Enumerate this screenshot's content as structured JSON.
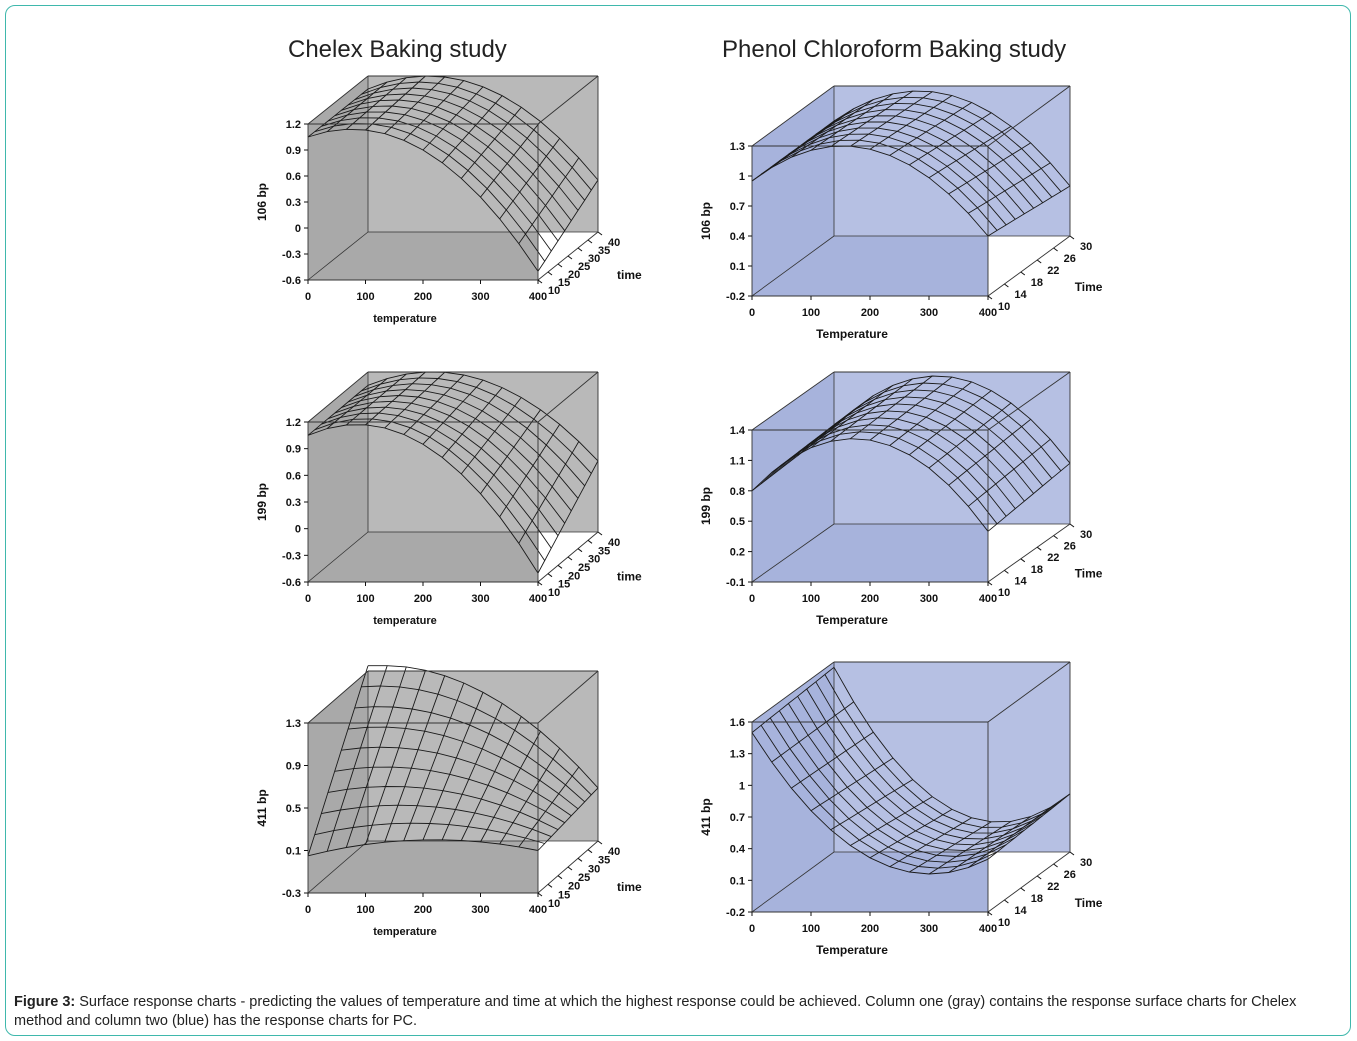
{
  "column_titles": {
    "left": "Chelex Baking study",
    "right": "Phenol Chloroform Baking study"
  },
  "colors": {
    "gray_box": "#a9a9a9",
    "gray_back": "#b9b9b9",
    "blue_box": "#a7b3dc",
    "blue_back": "#b6c0e3",
    "frame_border": "#3fb8ac"
  },
  "chart_data": [
    {
      "type": "surface3d",
      "method": "Chelex",
      "color": "gray",
      "zlabel": "106 bp",
      "xlabel": "temperature",
      "ylabel": "time",
      "x_ticks": [
        "0",
        "100",
        "200",
        "300",
        "400"
      ],
      "y_ticks": [
        "10",
        "15",
        "20",
        "25",
        "30",
        "35",
        "40"
      ],
      "z_ticks": [
        "1.2",
        "0.9",
        "0.6",
        "0.3",
        "0",
        "-0.3",
        "-0.6"
      ],
      "xlim": [
        0,
        400
      ],
      "ylim": [
        10,
        40
      ],
      "zlim": [
        -0.6,
        1.2
      ],
      "surface_points": [
        {
          "x": 0,
          "y": 10,
          "z": 1.05
        },
        {
          "x": 200,
          "y": 10,
          "z": 0.9
        },
        {
          "x": 400,
          "y": 10,
          "z": -0.5
        },
        {
          "x": 0,
          "y": 40,
          "z": 1.05
        },
        {
          "x": 100,
          "y": 40,
          "z": 1.2
        },
        {
          "x": 400,
          "y": 40,
          "z": 0.0
        }
      ]
    },
    {
      "type": "surface3d",
      "method": "Chelex",
      "color": "gray",
      "zlabel": "199 bp",
      "xlabel": "temperature",
      "ylabel": "time",
      "x_ticks": [
        "0",
        "100",
        "200",
        "300",
        "400"
      ],
      "y_ticks": [
        "10",
        "15",
        "20",
        "25",
        "30",
        "35",
        "40"
      ],
      "z_ticks": [
        "1.2",
        "0.9",
        "0.6",
        "0.3",
        "0",
        "-0.3",
        "-0.6"
      ],
      "xlim": [
        0,
        400
      ],
      "ylim": [
        10,
        40
      ],
      "zlim": [
        -0.6,
        1.2
      ],
      "surface_points": [
        {
          "x": 0,
          "y": 10,
          "z": 1.05
        },
        {
          "x": 200,
          "y": 10,
          "z": 0.95
        },
        {
          "x": 400,
          "y": 10,
          "z": -0.5
        },
        {
          "x": 0,
          "y": 40,
          "z": 1.05
        },
        {
          "x": 100,
          "y": 40,
          "z": 1.2
        },
        {
          "x": 400,
          "y": 40,
          "z": 0.2
        }
      ]
    },
    {
      "type": "surface3d",
      "method": "Chelex",
      "color": "gray",
      "zlabel": "411 bp",
      "xlabel": "temperature",
      "ylabel": "time",
      "x_ticks": [
        "0",
        "100",
        "200",
        "300",
        "400"
      ],
      "y_ticks": [
        "10",
        "15",
        "20",
        "25",
        "30",
        "35",
        "40"
      ],
      "z_ticks": [
        "1.3",
        "0.9",
        "0.5",
        "0.1",
        "-0.3"
      ],
      "xlim": [
        0,
        400
      ],
      "ylim": [
        10,
        40
      ],
      "zlim": [
        -0.3,
        1.3
      ],
      "surface_points": [
        {
          "x": 0,
          "y": 10,
          "z": 0.05
        },
        {
          "x": 200,
          "y": 10,
          "z": 0.2
        },
        {
          "x": 400,
          "y": 10,
          "z": 0.1
        },
        {
          "x": 0,
          "y": 40,
          "z": 1.35
        },
        {
          "x": 200,
          "y": 40,
          "z": 1.1
        },
        {
          "x": 400,
          "y": 40,
          "z": 0.2
        }
      ]
    },
    {
      "type": "surface3d",
      "method": "Phenol Chloroform",
      "color": "blue",
      "zlabel": "106 bp",
      "xlabel": "Temperature",
      "ylabel": "Time",
      "x_ticks": [
        "0",
        "100",
        "200",
        "300",
        "400"
      ],
      "y_ticks": [
        "10",
        "14",
        "18",
        "22",
        "26",
        "30"
      ],
      "z_ticks": [
        "1.3",
        "1",
        "0.7",
        "0.4",
        "0.1",
        "-0.2"
      ],
      "xlim": [
        0,
        400
      ],
      "ylim": [
        10,
        30
      ],
      "zlim": [
        -0.2,
        1.3
      ],
      "surface_points": [
        {
          "x": 0,
          "y": 10,
          "z": 0.95
        },
        {
          "x": 150,
          "y": 10,
          "z": 1.3
        },
        {
          "x": 400,
          "y": 10,
          "z": 0.4
        },
        {
          "x": 0,
          "y": 30,
          "z": 0.95
        },
        {
          "x": 150,
          "y": 30,
          "z": 1.25
        },
        {
          "x": 400,
          "y": 30,
          "z": 0.3
        }
      ]
    },
    {
      "type": "surface3d",
      "method": "Phenol Chloroform",
      "color": "blue",
      "zlabel": "199 bp",
      "xlabel": "Temperature",
      "ylabel": "Time",
      "x_ticks": [
        "0",
        "100",
        "200",
        "300",
        "400"
      ],
      "y_ticks": [
        "10",
        "14",
        "18",
        "22",
        "26",
        "30"
      ],
      "z_ticks": [
        "1.4",
        "1.1",
        "0.8",
        "0.5",
        "0.2",
        "-0.1"
      ],
      "xlim": [
        0,
        400
      ],
      "ylim": [
        10,
        30
      ],
      "zlim": [
        -0.1,
        1.4
      ],
      "surface_points": [
        {
          "x": 0,
          "y": 10,
          "z": 0.8
        },
        {
          "x": 200,
          "y": 10,
          "z": 1.3
        },
        {
          "x": 400,
          "y": 10,
          "z": 0.4
        },
        {
          "x": 0,
          "y": 30,
          "z": 0.85
        },
        {
          "x": 200,
          "y": 30,
          "z": 1.35
        },
        {
          "x": 400,
          "y": 30,
          "z": 0.5
        }
      ]
    },
    {
      "type": "surface3d",
      "method": "Phenol Chloroform",
      "color": "blue",
      "zlabel": "411 bp",
      "xlabel": "Temperature",
      "ylabel": "Time",
      "x_ticks": [
        "0",
        "100",
        "200",
        "300",
        "400"
      ],
      "y_ticks": [
        "10",
        "14",
        "18",
        "22",
        "26",
        "30"
      ],
      "z_ticks": [
        "1.6",
        "1.3",
        "1",
        "0.7",
        "0.4",
        "0.1",
        "-0.2"
      ],
      "xlim": [
        0,
        400
      ],
      "ylim": [
        10,
        30
      ],
      "zlim": [
        -0.2,
        1.6
      ],
      "surface_points": [
        {
          "x": 0,
          "y": 10,
          "z": 1.5
        },
        {
          "x": 250,
          "y": 10,
          "z": 0.2
        },
        {
          "x": 400,
          "y": 10,
          "z": 0.3
        },
        {
          "x": 0,
          "y": 30,
          "z": 1.55
        },
        {
          "x": 250,
          "y": 30,
          "z": 0.1
        },
        {
          "x": 400,
          "y": 30,
          "z": 0.35
        }
      ]
    }
  ],
  "caption": {
    "label": "Figure 3:",
    "text": " Surface response charts - predicting the values of temperature and time at which the highest response could be achieved. Column one (gray) contains the response surface charts for Chelex method and column two (blue) has the response charts for PC."
  }
}
